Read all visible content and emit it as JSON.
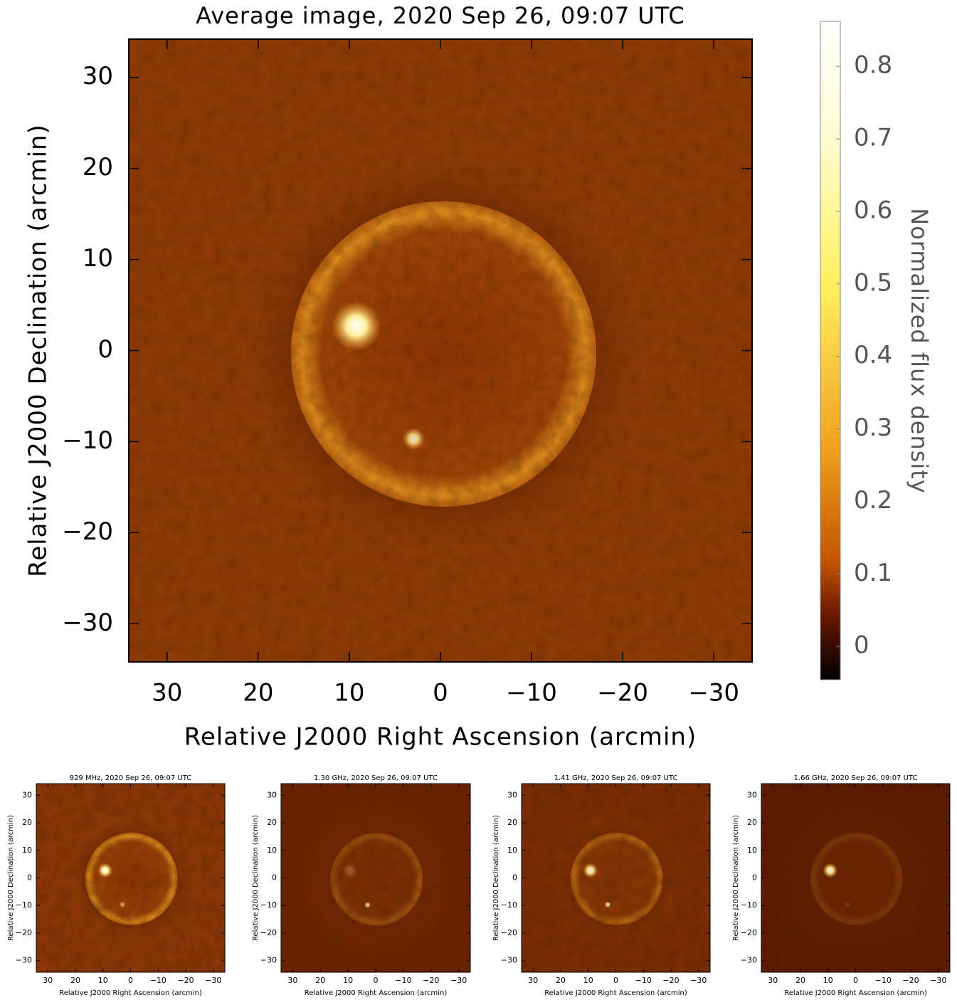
{
  "chart_data": [
    {
      "type": "image",
      "title": "Average image, 2020 Sep 26, 09:07 UTC",
      "xlabel": "Relative J2000 Right Ascension (arcmin)",
      "ylabel": "Relative J2000 Declination (arcmin)",
      "xlim": [
        34.2,
        -34.2
      ],
      "ylim": [
        -34.2,
        34.2
      ],
      "xticks": [
        30,
        20,
        10,
        0,
        {
          "value": -10,
          "label": "−10"
        },
        {
          "value": -20,
          "label": "−20"
        },
        {
          "value": -30,
          "label": "−30"
        }
      ],
      "yticks": [
        {
          "value": -30,
          "label": "−30"
        },
        {
          "value": -20,
          "label": "−20"
        },
        {
          "value": -10,
          "label": "−10"
        },
        0,
        10,
        20,
        30
      ],
      "colorbar": {
        "label": "Normalized flux density",
        "lim": [
          -0.046,
          0.862
        ],
        "ticks": [
          0,
          0.1,
          0.2,
          0.3,
          0.4,
          0.5,
          0.6,
          0.7,
          0.8
        ]
      }
    },
    {
      "type": "image",
      "title": "929 MHz, 2020 Sep 26, 09:07 UTC",
      "xlabel": "Relative J2000 Right Ascension (arcmin)",
      "ylabel": "Relative J2000 Declination (arcmin)",
      "xlim": [
        34.2,
        -34.2
      ],
      "ylim": [
        -34.2,
        34.2
      ],
      "xticks": [
        30,
        20,
        10,
        0,
        {
          "value": -10,
          "label": "−10"
        },
        {
          "value": -20,
          "label": "−20"
        },
        {
          "value": -30,
          "label": "−30"
        }
      ],
      "yticks": [
        {
          "value": -30,
          "label": "−30"
        },
        {
          "value": -20,
          "label": "−20"
        },
        {
          "value": -10,
          "label": "−10"
        },
        0,
        10,
        20,
        30
      ]
    },
    {
      "type": "image",
      "title": "1.30 GHz, 2020 Sep 26, 09:07 UTC",
      "xlabel": "Relative J2000 Right Ascension (arcmin)",
      "ylabel": "Relative J2000 Declination (arcmin)",
      "xlim": [
        34.2,
        -34.2
      ],
      "ylim": [
        -34.2,
        34.2
      ],
      "xticks": [
        30,
        20,
        10,
        0,
        {
          "value": -10,
          "label": "−10"
        },
        {
          "value": -20,
          "label": "−20"
        },
        {
          "value": -30,
          "label": "−30"
        }
      ],
      "yticks": [
        {
          "value": -30,
          "label": "−30"
        },
        {
          "value": -20,
          "label": "−20"
        },
        {
          "value": -10,
          "label": "−10"
        },
        0,
        10,
        20,
        30
      ]
    },
    {
      "type": "image",
      "title": "1.41 GHz, 2020 Sep 26, 09:07 UTC",
      "xlabel": "Relative J2000 Right Ascension (arcmin)",
      "ylabel": "Relative J2000 Declination (arcmin)",
      "xlim": [
        34.2,
        -34.2
      ],
      "ylim": [
        -34.2,
        34.2
      ],
      "xticks": [
        30,
        20,
        10,
        0,
        {
          "value": -10,
          "label": "−10"
        },
        {
          "value": -20,
          "label": "−20"
        },
        {
          "value": -30,
          "label": "−30"
        }
      ],
      "yticks": [
        {
          "value": -30,
          "label": "−30"
        },
        {
          "value": -20,
          "label": "−20"
        },
        {
          "value": -10,
          "label": "−10"
        },
        0,
        10,
        20,
        30
      ]
    },
    {
      "type": "image",
      "title": "1.66 GHz, 2020 Sep 26, 09:07 UTC",
      "xlabel": "Relative J2000 Right Ascension (arcmin)",
      "ylabel": "Relative J2000 Declination (arcmin)",
      "xlim": [
        34.2,
        -34.2
      ],
      "ylim": [
        -34.2,
        34.2
      ],
      "xticks": [
        30,
        20,
        10,
        0,
        {
          "value": -10,
          "label": "−10"
        },
        {
          "value": -20,
          "label": "−20"
        },
        {
          "value": -30,
          "label": "−30"
        }
      ],
      "yticks": [
        {
          "value": -30,
          "label": "−30"
        },
        {
          "value": -20,
          "label": "−20"
        },
        {
          "value": -10,
          "label": "−10"
        },
        0,
        10,
        20,
        30
      ]
    }
  ]
}
